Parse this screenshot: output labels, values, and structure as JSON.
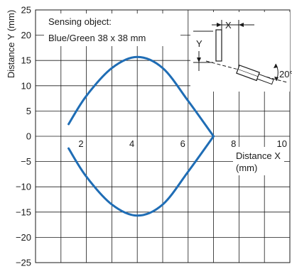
{
  "chart_data": {
    "type": "line",
    "title": "",
    "xlabel_line1": "Distance X",
    "xlabel_line2": "(mm)",
    "ylabel": "Distance Y (mm)",
    "xlim": [
      0,
      10
    ],
    "ylim": [
      -25,
      25
    ],
    "x_ticks": [
      2,
      4,
      6,
      8,
      10
    ],
    "y_ticks": [
      25,
      20,
      15,
      10,
      5,
      0,
      -5,
      -10,
      -15,
      -20,
      -25
    ],
    "y_tick_labels": [
      "25",
      "20",
      "15",
      "10",
      "5",
      "0",
      "−5",
      "−10",
      "−15",
      "−20",
      "−25"
    ],
    "grid": true,
    "series": [
      {
        "color": "#1f6db5",
        "upper": {
          "x": [
            1.3,
            2,
            3,
            4,
            5,
            6,
            7
          ],
          "y": [
            2.4,
            8.0,
            13.5,
            15.7,
            13.5,
            7.0,
            0
          ]
        },
        "lower": {
          "x": [
            1.3,
            2,
            3,
            4,
            5,
            6,
            7
          ],
          "y": [
            -2.4,
            -8.0,
            -13.5,
            -15.7,
            -13.5,
            -7.0,
            0
          ]
        }
      }
    ],
    "annotations": {
      "sensing_line1": "Sensing object:",
      "sensing_line2": "Blue/Green 38 x 38 mm",
      "inset_x": "X",
      "inset_y": "Y",
      "inset_angle": "20°"
    }
  }
}
